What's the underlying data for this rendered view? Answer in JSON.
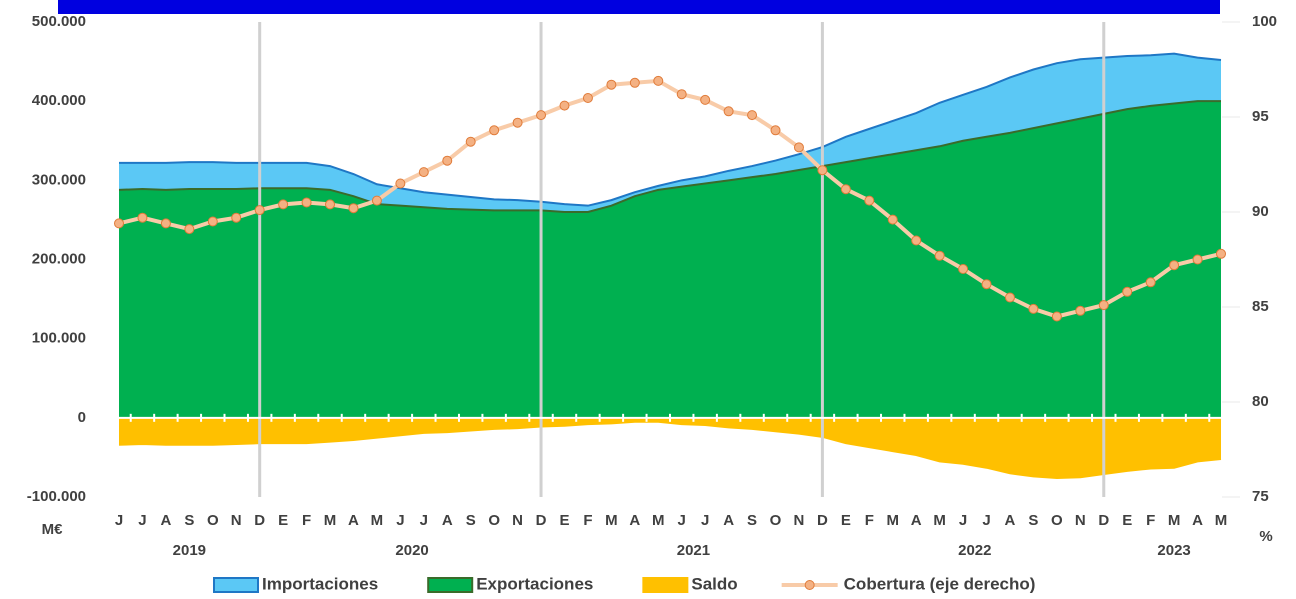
{
  "chart_data": {
    "type": "area",
    "categories": [
      "J",
      "J",
      "A",
      "S",
      "O",
      "N",
      "D",
      "E",
      "F",
      "M",
      "A",
      "M",
      "J",
      "J",
      "A",
      "S",
      "O",
      "N",
      "D",
      "E",
      "F",
      "M",
      "A",
      "M",
      "J",
      "J",
      "A",
      "S",
      "O",
      "N",
      "D",
      "E",
      "F",
      "M",
      "A",
      "M",
      "J",
      "J",
      "A",
      "S",
      "O",
      "N",
      "D",
      "E",
      "F",
      "M",
      "A",
      "M"
    ],
    "years": [
      "2019",
      "2020",
      "2021",
      "2022",
      "2023"
    ],
    "ylabel": "M€",
    "y2label": "%",
    "ylim": [
      -100000,
      500000
    ],
    "yticks": [
      {
        "value": -100000,
        "label": "-100.000"
      },
      0,
      {
        "value": 100000,
        "label": "100.000"
      },
      {
        "value": 200000,
        "label": "200.000"
      },
      {
        "value": 300000,
        "label": "300.000"
      },
      {
        "value": 400000,
        "label": "400.000"
      },
      {
        "value": 500000,
        "label": "500.000"
      }
    ],
    "y2lim": [
      75,
      100
    ],
    "y2ticks": [
      75,
      80,
      85,
      90,
      95,
      100
    ],
    "series": [
      {
        "name": "Importaciones",
        "type": "area",
        "color": "#5bc8f5",
        "line_color": "#1f77c5",
        "values": [
          322000,
          322000,
          322000,
          323000,
          323000,
          322000,
          322000,
          322000,
          322000,
          318000,
          308000,
          295000,
          290000,
          285000,
          282000,
          279000,
          276000,
          275000,
          273000,
          270000,
          268000,
          275000,
          285000,
          293000,
          300000,
          305000,
          312000,
          318000,
          325000,
          333000,
          342000,
          355000,
          365000,
          375000,
          385000,
          398000,
          408000,
          418000,
          430000,
          440000,
          448000,
          453000,
          455000,
          457000,
          458000,
          460000,
          455000,
          452000
        ]
      },
      {
        "name": "Exportaciones",
        "type": "area",
        "color": "#00b050",
        "line_color": "#3a6b2a",
        "values": [
          288000,
          289000,
          288000,
          289000,
          289000,
          289000,
          290000,
          290000,
          290000,
          288000,
          280000,
          270000,
          268000,
          266000,
          264000,
          263000,
          262000,
          262000,
          262000,
          260000,
          260000,
          268000,
          280000,
          288000,
          292000,
          296000,
          300000,
          304000,
          308000,
          313000,
          318000,
          323000,
          328000,
          333000,
          338000,
          343000,
          350000,
          355000,
          360000,
          366000,
          372000,
          378000,
          384000,
          390000,
          394000,
          397000,
          400000,
          400000
        ]
      },
      {
        "name": "Saldo",
        "type": "area",
        "color": "#ffc000",
        "line_color": "#ffc000",
        "values": [
          -34000,
          -33000,
          -34000,
          -34000,
          -34000,
          -33000,
          -32000,
          -32000,
          -32000,
          -30000,
          -28000,
          -25000,
          -22000,
          -19000,
          -18000,
          -16000,
          -14000,
          -13000,
          -11000,
          -10000,
          -8000,
          -7000,
          -5000,
          -5000,
          -8000,
          -9000,
          -12000,
          -14000,
          -17000,
          -20000,
          -24000,
          -32000,
          -37000,
          -42000,
          -47000,
          -55000,
          -58000,
          -63000,
          -70000,
          -74000,
          -76000,
          -75000,
          -71000,
          -67000,
          -64000,
          -63000,
          -55000,
          -52000
        ]
      },
      {
        "name": "Cobertura (eje derecho)",
        "type": "line",
        "axis": "y2",
        "color": "#f8cba8",
        "marker_color": "#f4b183",
        "marker_edge": "#e07b39",
        "values": [
          89.4,
          89.7,
          89.4,
          89.1,
          89.5,
          89.7,
          90.1,
          90.4,
          90.5,
          90.4,
          90.2,
          90.6,
          91.5,
          92.1,
          92.7,
          93.7,
          94.3,
          94.7,
          95.1,
          95.6,
          96.0,
          96.7,
          96.8,
          96.9,
          96.2,
          95.9,
          95.3,
          95.1,
          94.3,
          93.4,
          92.2,
          91.2,
          90.6,
          89.6,
          88.5,
          87.7,
          87.0,
          86.2,
          85.5,
          84.9,
          84.5,
          84.8,
          85.1,
          85.8,
          86.3,
          87.2,
          87.5,
          87.8
        ]
      }
    ],
    "separator_color": "#d0d0d0"
  }
}
